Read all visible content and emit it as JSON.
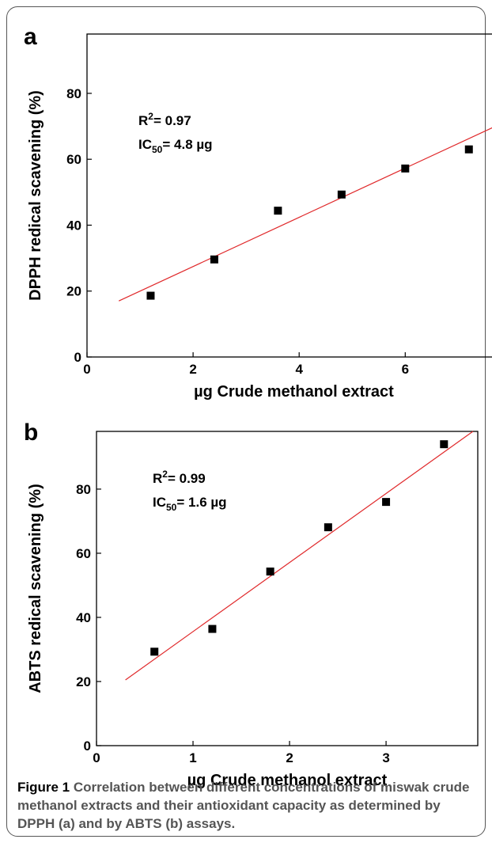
{
  "chart_data": [
    {
      "panel": "a",
      "type": "scatter",
      "xlabel": "µg Crude methanol extract",
      "ylabel": "DPPH redical scavening (%)",
      "xlim": [
        0,
        7.8
      ],
      "ylim": [
        0,
        98
      ],
      "xticks": [
        0,
        2,
        4,
        6
      ],
      "yticks": [
        0,
        20,
        40,
        60,
        80
      ],
      "points": [
        {
          "x": 1.2,
          "y": 18.6
        },
        {
          "x": 2.4,
          "y": 29.6
        },
        {
          "x": 3.6,
          "y": 44.4
        },
        {
          "x": 4.8,
          "y": 49.3
        },
        {
          "x": 6.0,
          "y": 57.2
        },
        {
          "x": 7.2,
          "y": 63.0
        }
      ],
      "fit_line": {
        "x": [
          0.6,
          7.7
        ],
        "y": [
          17.0,
          70.0
        ],
        "color": "#e0292b"
      },
      "annotations": {
        "r2": "R²= 0.97",
        "r2_prefix": "R",
        "r2_sup": "2",
        "r2_value": "= 0.97",
        "ic50_prefix": "IC",
        "ic50_sub": "50",
        "ic50_value": "= 4.8 µg"
      },
      "marker_color": "#000000"
    },
    {
      "panel": "b",
      "type": "scatter",
      "xlabel": "µg Crude methanol extract",
      "ylabel": "ABTS redical scavening (%)",
      "xlim": [
        0,
        3.95
      ],
      "ylim": [
        0,
        98
      ],
      "xticks": [
        0,
        1,
        2,
        3
      ],
      "yticks": [
        0,
        20,
        40,
        60,
        80
      ],
      "points": [
        {
          "x": 0.6,
          "y": 29.3
        },
        {
          "x": 1.2,
          "y": 36.4
        },
        {
          "x": 1.8,
          "y": 54.3
        },
        {
          "x": 2.4,
          "y": 68.1
        },
        {
          "x": 3.0,
          "y": 76.0
        },
        {
          "x": 3.6,
          "y": 94.0
        }
      ],
      "fit_line": {
        "x": [
          0.3,
          3.9
        ],
        "y": [
          20.5,
          98.0
        ],
        "color": "#e0292b"
      },
      "annotations": {
        "r2": "R²= 0.99",
        "r2_prefix": "R",
        "r2_sup": "2",
        "r2_value": "= 0.99",
        "ic50_prefix": "IC",
        "ic50_sub": "50",
        "ic50_value": "= 1.6 µg"
      },
      "marker_color": "#000000"
    }
  ],
  "caption": {
    "figure_label": "Figure 1",
    "text": " Correlation between different concentrations of miswak crude methanol extracts and their antioxidant capacity as determined by DPPH (a) and by ABTS (b) assays."
  }
}
